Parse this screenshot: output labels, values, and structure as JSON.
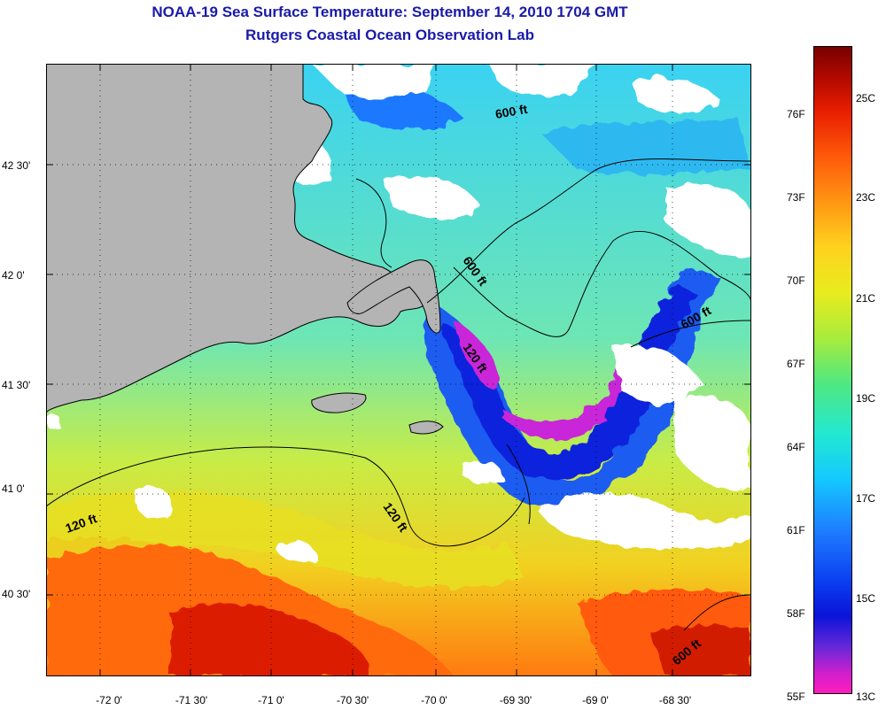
{
  "header": {
    "title": "NOAA-19 Sea Surface Temperature:  September 14, 2010 1704 GMT",
    "subtitle": "Rutgers Coastal Ocean Observation Lab"
  },
  "map": {
    "latitude_labels": [
      "42 30'",
      "42 0'",
      "41 30'",
      "41 0'",
      "40 30'"
    ],
    "longitude_labels": [
      "-72 0'",
      "-71 30'",
      "-71 0'",
      "-70 30'",
      "-70 0'",
      "-69 30'",
      "-69 0'",
      "-68 30'"
    ],
    "contour_labels": [
      "600 ft",
      "600 ft",
      "600 ft",
      "600 ft",
      "120 ft",
      "120 ft",
      "120 ft"
    ],
    "land_color": "#b4b4b4",
    "cloud_color": "#ffffff"
  },
  "colorbar": {
    "fahrenheit_labels": [
      "76F",
      "73F",
      "70F",
      "67F",
      "64F",
      "61F",
      "58F",
      "55F"
    ],
    "celsius_labels": [
      "25C",
      "23C",
      "21C",
      "19C",
      "17C",
      "15C",
      "13C"
    ]
  }
}
